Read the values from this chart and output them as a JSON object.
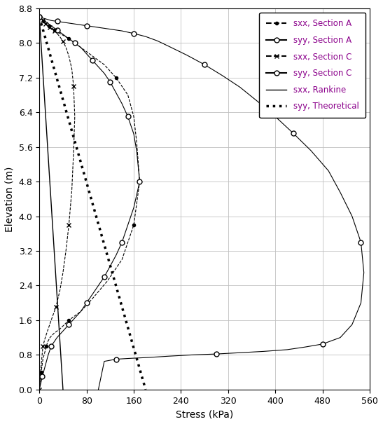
{
  "xlabel": "Stress (kPa)",
  "ylabel": "Elevation (m)",
  "xlim": [
    0,
    560
  ],
  "ylim": [
    0,
    8.8
  ],
  "xticks": [
    0,
    80,
    160,
    240,
    320,
    400,
    480,
    560
  ],
  "yticks": [
    0,
    0.8,
    1.6,
    2.4,
    3.2,
    4.0,
    4.8,
    5.6,
    6.4,
    7.2,
    8.0,
    8.8
  ],
  "sxx_rankine": {
    "stress": [
      0,
      40
    ],
    "elev": [
      8.6,
      0
    ],
    "color": "#000000",
    "linestyle": "solid",
    "linewidth": 1.0
  },
  "syy_theoretical": {
    "stress": [
      0,
      180
    ],
    "elev": [
      8.6,
      0
    ],
    "color": "#000000",
    "linestyle": "dotted",
    "linewidth": 2.5
  },
  "sxx_secA": {
    "stress": [
      0,
      2,
      4,
      5,
      6,
      7,
      8,
      10,
      12,
      14,
      16,
      18,
      20,
      22,
      24,
      26,
      28,
      30,
      35,
      40,
      50,
      60,
      75,
      90,
      110,
      130,
      150,
      160,
      165,
      170,
      160,
      140,
      115,
      90,
      70,
      50,
      35,
      25,
      18,
      14,
      12,
      10,
      8,
      6,
      4,
      3,
      2,
      0
    ],
    "elev": [
      8.6,
      8.58,
      8.56,
      8.54,
      8.52,
      8.5,
      8.48,
      8.46,
      8.44,
      8.42,
      8.4,
      8.38,
      8.36,
      8.34,
      8.32,
      8.3,
      8.28,
      8.26,
      8.22,
      8.18,
      8.1,
      8.0,
      7.85,
      7.7,
      7.5,
      7.2,
      6.8,
      6.3,
      5.7,
      4.8,
      3.8,
      3.0,
      2.5,
      2.1,
      1.8,
      1.6,
      1.4,
      1.3,
      1.2,
      1.1,
      1.0,
      0.9,
      0.8,
      0.7,
      0.5,
      0.4,
      0.2,
      0.0
    ],
    "color": "#000000",
    "linestyle": "dashed",
    "marker": "o",
    "markersize": 3,
    "markerfacecolor": "#000000",
    "markevery": 5
  },
  "syy_secA": {
    "stress": [
      0,
      10,
      20,
      30,
      40,
      50,
      60,
      70,
      80,
      90,
      100,
      110,
      120,
      130,
      140,
      150,
      160,
      165,
      170,
      160,
      150,
      140,
      130,
      120,
      110,
      100,
      90,
      80,
      70,
      60,
      50,
      40,
      30,
      20,
      15,
      10,
      5,
      0
    ],
    "elev": [
      8.6,
      8.5,
      8.4,
      8.3,
      8.2,
      8.1,
      8.0,
      7.9,
      7.75,
      7.6,
      7.45,
      7.3,
      7.1,
      6.85,
      6.6,
      6.3,
      5.9,
      5.5,
      4.8,
      4.2,
      3.8,
      3.4,
      3.1,
      2.85,
      2.6,
      2.4,
      2.2,
      2.0,
      1.8,
      1.65,
      1.5,
      1.35,
      1.2,
      1.0,
      0.8,
      0.55,
      0.3,
      0.0
    ],
    "color": "#000000",
    "linestyle": "solid",
    "marker": "o",
    "markersize": 5,
    "markerfacecolor": "#ffffff",
    "markevery": 3
  },
  "sxx_secC": {
    "stress": [
      0,
      2,
      4,
      5,
      6,
      7,
      8,
      9,
      10,
      12,
      14,
      16,
      18,
      20,
      22,
      24,
      26,
      28,
      30,
      35,
      40,
      45,
      50,
      55,
      58,
      60,
      58,
      55,
      50,
      45,
      40,
      35,
      28,
      20,
      15,
      10,
      6,
      4,
      2,
      1,
      0
    ],
    "elev": [
      8.6,
      8.58,
      8.56,
      8.54,
      8.52,
      8.5,
      8.48,
      8.46,
      8.44,
      8.42,
      8.4,
      8.38,
      8.36,
      8.34,
      8.32,
      8.3,
      8.28,
      8.26,
      8.22,
      8.14,
      8.04,
      7.9,
      7.7,
      7.4,
      7.0,
      6.3,
      5.5,
      4.6,
      3.8,
      3.2,
      2.7,
      2.3,
      1.9,
      1.6,
      1.4,
      1.2,
      1.0,
      0.7,
      0.4,
      0.2,
      0.0
    ],
    "color": "#000000",
    "linestyle": "dashed",
    "marker": "x",
    "markersize": 5,
    "markevery": 4
  },
  "syy_secC": {
    "stress": [
      0,
      5,
      10,
      15,
      20,
      30,
      40,
      50,
      60,
      70,
      80,
      90,
      100,
      120,
      140,
      160,
      180,
      200,
      220,
      250,
      280,
      310,
      340,
      370,
      400,
      430,
      460,
      490,
      510,
      530,
      545,
      550,
      545,
      530,
      510,
      480,
      450,
      420,
      380,
      340,
      300,
      260,
      220,
      185,
      155,
      130,
      110,
      100
    ],
    "elev": [
      8.6,
      8.58,
      8.56,
      8.54,
      8.52,
      8.5,
      8.48,
      8.46,
      8.44,
      8.42,
      8.4,
      8.38,
      8.36,
      8.32,
      8.28,
      8.22,
      8.15,
      8.05,
      7.92,
      7.72,
      7.5,
      7.25,
      6.98,
      6.65,
      6.3,
      5.92,
      5.52,
      5.05,
      4.55,
      4.0,
      3.4,
      2.7,
      2.0,
      1.5,
      1.2,
      1.05,
      0.98,
      0.92,
      0.88,
      0.85,
      0.82,
      0.8,
      0.77,
      0.74,
      0.72,
      0.7,
      0.65,
      0.0
    ],
    "color": "#000000",
    "linestyle": "solid",
    "marker": "o",
    "markersize": 5,
    "markerfacecolor": "#ffffff",
    "markevery": 5
  },
  "legend_text_color": "#8B008B",
  "background_color": "#ffffff",
  "grid_color": "#c0c0c0",
  "figsize": [
    5.47,
    6.05
  ],
  "dpi": 100
}
